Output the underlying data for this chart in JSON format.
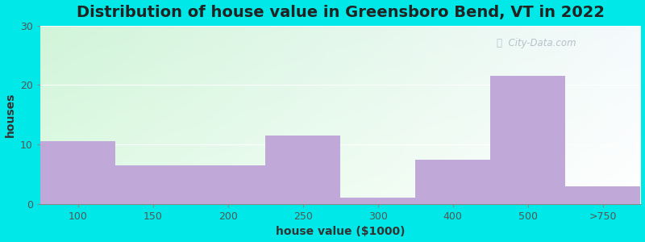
{
  "categories": [
    "100",
    "150",
    "200",
    "250",
    "300",
    "400",
    "500",
    ">750"
  ],
  "values": [
    10.5,
    6.5,
    6.5,
    11.5,
    1.0,
    7.5,
    21.5,
    3.0
  ],
  "bar_color": "#c0a8d8",
  "bar_edgecolor": "#c0a8d8",
  "title": "Distribution of house value in Greensboro Bend, VT in 2022",
  "xlabel": "house value ($1000)",
  "ylabel": "houses",
  "ylim": [
    0,
    30
  ],
  "yticks": [
    0,
    10,
    20,
    30
  ],
  "title_fontsize": 14,
  "label_fontsize": 10,
  "tick_fontsize": 9,
  "bg_outer": "#00e8e8",
  "watermark_text": "City-Data.com",
  "grad_topleft": [
    0.82,
    0.96,
    0.85
  ],
  "grad_topright": [
    0.96,
    0.98,
    0.99
  ],
  "grad_bottomleft": [
    0.88,
    0.98,
    0.9
  ],
  "grad_bottomright": [
    1.0,
    1.0,
    1.0
  ]
}
